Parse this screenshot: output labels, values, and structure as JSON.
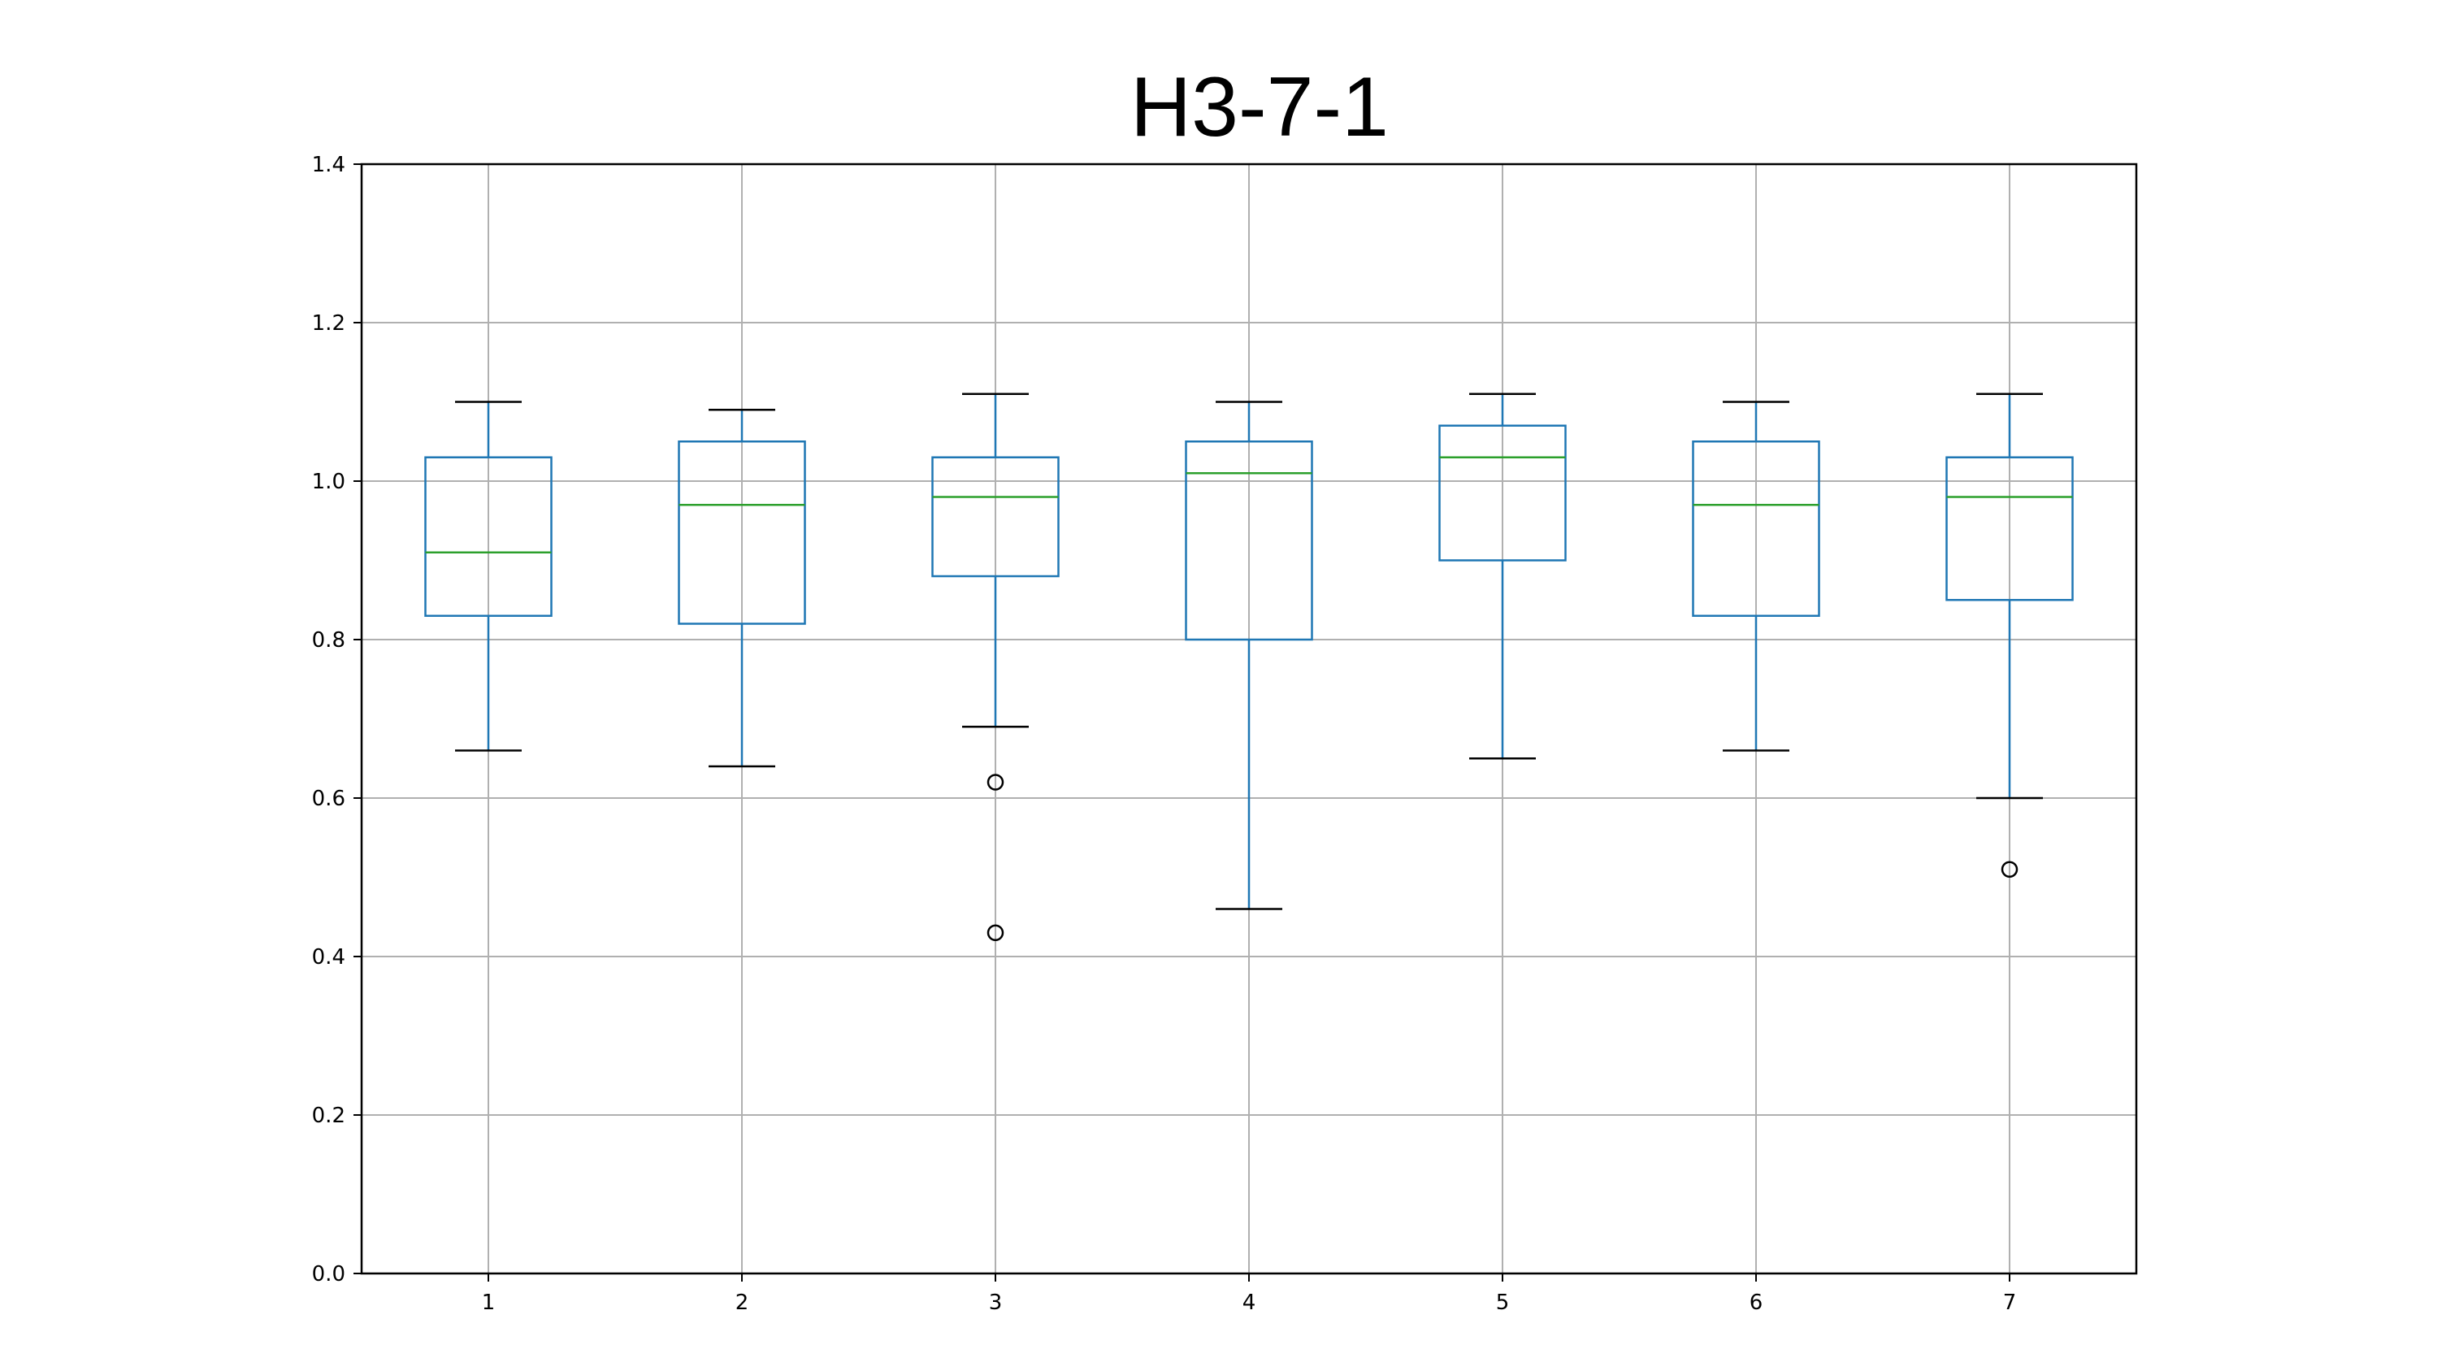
{
  "chart_data": {
    "type": "box",
    "title": "H3-7-1",
    "xlabel": "",
    "ylabel": "",
    "categories": [
      "1",
      "2",
      "3",
      "4",
      "5",
      "6",
      "7"
    ],
    "ylim": [
      0.0,
      1.4
    ],
    "yticks": [
      "0.0",
      "0.2",
      "0.4",
      "0.6",
      "0.8",
      "1.0",
      "1.2",
      "1.4"
    ],
    "grid": true,
    "legend": "none",
    "colors": {
      "box": "#1f77b4",
      "median": "#2ca02c",
      "whisker_cap": "#000000",
      "outlier": "#000000",
      "grid": "#b0b0b0",
      "axes": "#000000"
    },
    "boxes": [
      {
        "category": "1",
        "whisker_low": 0.66,
        "q1": 0.83,
        "median": 0.91,
        "q3": 1.03,
        "whisker_high": 1.1,
        "outliers": []
      },
      {
        "category": "2",
        "whisker_low": 0.64,
        "q1": 0.82,
        "median": 0.97,
        "q3": 1.05,
        "whisker_high": 1.09,
        "outliers": []
      },
      {
        "category": "3",
        "whisker_low": 0.69,
        "q1": 0.88,
        "median": 0.98,
        "q3": 1.03,
        "whisker_high": 1.11,
        "outliers": [
          0.62,
          0.43
        ]
      },
      {
        "category": "4",
        "whisker_low": 0.46,
        "q1": 0.8,
        "median": 1.01,
        "q3": 1.05,
        "whisker_high": 1.1,
        "outliers": []
      },
      {
        "category": "5",
        "whisker_low": 0.65,
        "q1": 0.9,
        "median": 1.03,
        "q3": 1.07,
        "whisker_high": 1.11,
        "outliers": []
      },
      {
        "category": "6",
        "whisker_low": 0.66,
        "q1": 0.83,
        "median": 0.97,
        "q3": 1.05,
        "whisker_high": 1.1,
        "outliers": []
      },
      {
        "category": "7",
        "whisker_low": 0.6,
        "q1": 0.85,
        "median": 0.98,
        "q3": 1.03,
        "whisker_high": 1.11,
        "outliers": [
          0.51
        ]
      }
    ]
  }
}
